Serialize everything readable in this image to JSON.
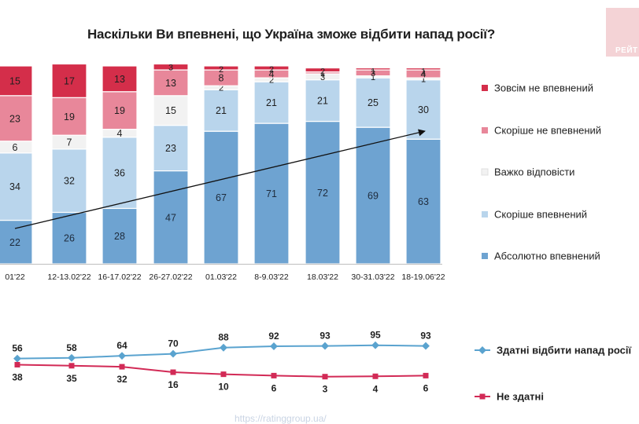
{
  "title": "Наскільки Ви впевнені, що Україна зможе відбити напад росії?",
  "logo_text": "РЕЙТ",
  "footer_url": "https://ratinggroup.ua/",
  "chart_data": [
    {
      "type": "bar",
      "stacked": true,
      "categories": [
        "01'22",
        "12-13.02'22",
        "16-17.02'22",
        "26-27.02'22",
        "01.03'22",
        "8-9.03'22",
        "18.03'22",
        "30-31.03'22",
        "18-19.06'22"
      ],
      "series": [
        {
          "name": "Абсолютно впевнений",
          "color": "#6ea3d1",
          "values": [
            22,
            26,
            28,
            47,
            67,
            71,
            72,
            69,
            63
          ]
        },
        {
          "name": "Скоріше впевнений",
          "color": "#b9d5ec",
          "values": [
            34,
            32,
            36,
            23,
            21,
            21,
            21,
            25,
            30
          ]
        },
        {
          "name": "Важко відповісти",
          "color": "#f2f2f2",
          "values": [
            6,
            7,
            4,
            15,
            2,
            2,
            3,
            1,
            1
          ]
        },
        {
          "name": "Скоріше не впевнений",
          "color": "#e8879a",
          "values": [
            23,
            19,
            19,
            13,
            8,
            4,
            1,
            3,
            4
          ]
        },
        {
          "name": "Зовсім не впевнений",
          "color": "#d42e4a",
          "values": [
            15,
            17,
            13,
            3,
            2,
            2,
            2,
            1,
            1
          ]
        }
      ],
      "trend_arrow": true,
      "ylim": [
        0,
        100
      ],
      "legend_position": "right"
    },
    {
      "type": "line",
      "categories": [
        "01'22",
        "12-13.02'22",
        "16-17.02'22",
        "26-27.02'22",
        "01.03'22",
        "8-9.03'22",
        "18.03'22",
        "30-31.03'22",
        "18-19.06'22"
      ],
      "series": [
        {
          "name": "Здатні відбити напад росії",
          "color": "#5aa3cf",
          "values": [
            56,
            58,
            64,
            70,
            88,
            92,
            93,
            95,
            93
          ]
        },
        {
          "name": "Не здатні",
          "color": "#d22a56",
          "values": [
            38,
            35,
            32,
            16,
            10,
            6,
            3,
            4,
            6
          ]
        }
      ],
      "legend_position": "right"
    }
  ]
}
